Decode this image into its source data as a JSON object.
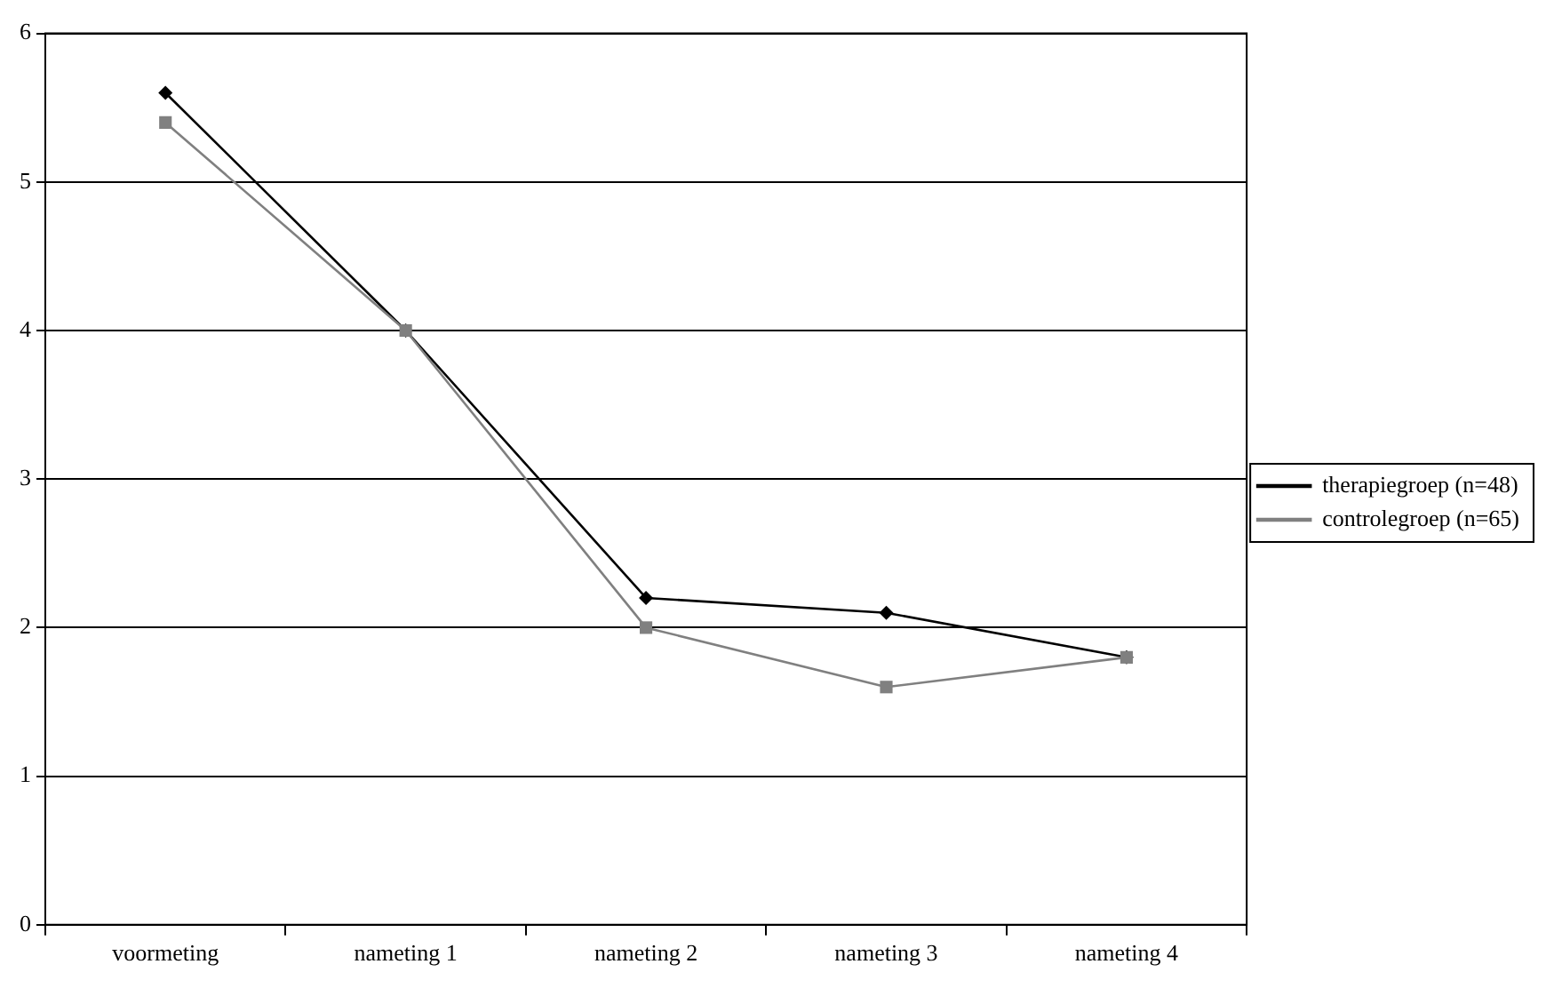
{
  "chart_data": {
    "type": "line",
    "categories": [
      "voormeting",
      "nameting 1",
      "nameting 2",
      "nameting 3",
      "nameting 4"
    ],
    "series": [
      {
        "name": "therapiegroep (n=48)",
        "color": "#000000",
        "marker": "diamond",
        "values": [
          5.6,
          4.0,
          2.2,
          2.1,
          1.8
        ]
      },
      {
        "name": "controlegroep (n=65)",
        "color": "#808080",
        "marker": "square",
        "values": [
          5.4,
          4.0,
          2.0,
          1.6,
          1.8
        ]
      }
    ],
    "ylim": [
      0,
      6
    ],
    "yticks": [
      0,
      1,
      2,
      3,
      4,
      5,
      6
    ],
    "grid": "y",
    "legend": "right"
  }
}
